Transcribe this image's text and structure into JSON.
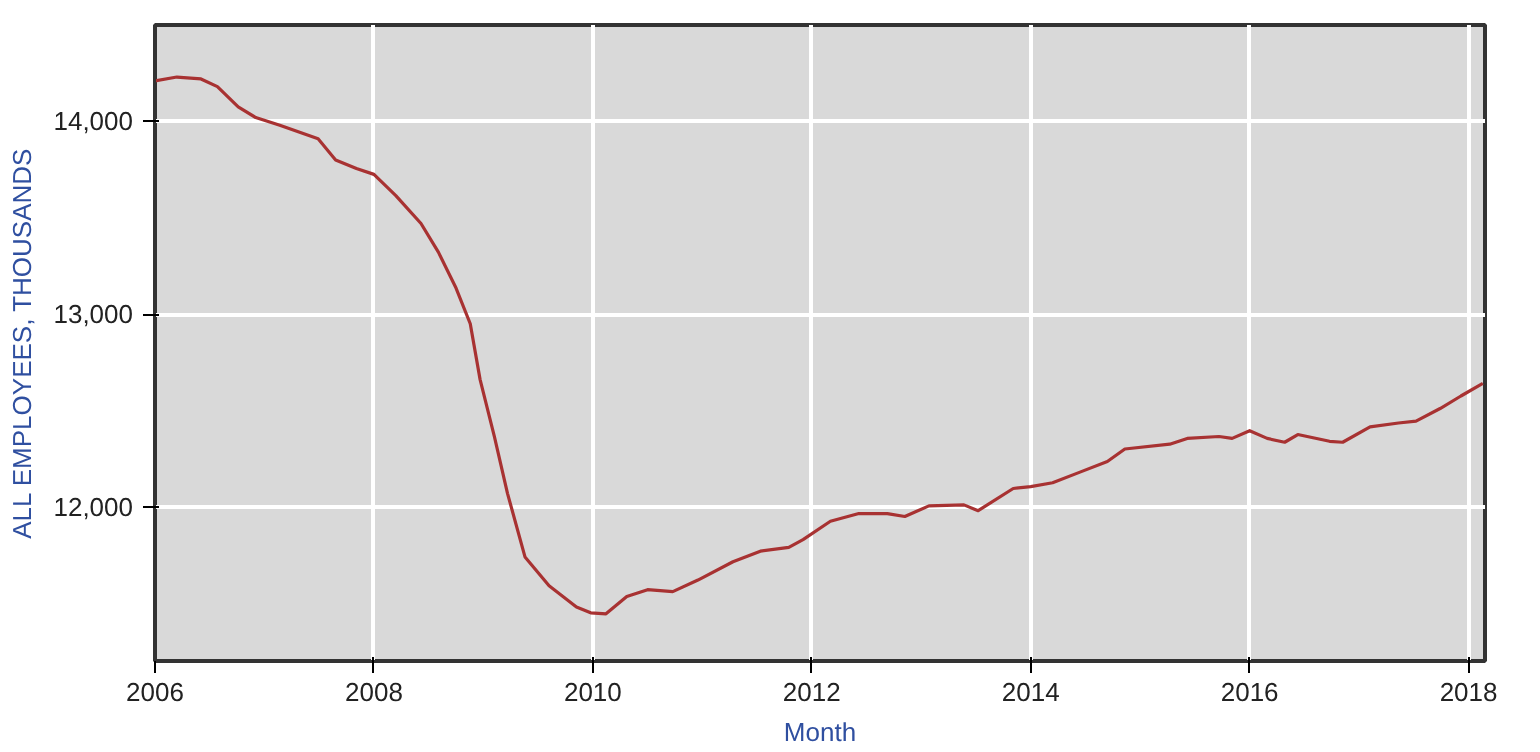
{
  "chart_data": {
    "type": "line",
    "xlabel": "Month",
    "ylabel": "ALL EMPLOYEES, THOUSANDS",
    "x": [
      2006.0,
      2006.2,
      2006.42,
      2006.57,
      2006.76,
      2006.92,
      2007.14,
      2007.49,
      2007.65,
      2007.84,
      2008.0,
      2008.2,
      2008.43,
      2008.59,
      2008.75,
      2008.88,
      2008.97,
      2009.1,
      2009.22,
      2009.38,
      2009.6,
      2009.85,
      2009.98,
      2010.12,
      2010.31,
      2010.5,
      2010.73,
      2010.96,
      2011.28,
      2011.53,
      2011.79,
      2011.92,
      2012.17,
      2012.43,
      2012.69,
      2012.85,
      2013.07,
      2013.39,
      2013.52,
      2013.84,
      2014.0,
      2014.2,
      2014.45,
      2014.7,
      2014.86,
      2015.27,
      2015.43,
      2015.72,
      2015.84,
      2016.0,
      2016.16,
      2016.32,
      2016.44,
      2016.73,
      2016.85,
      2017.1,
      2017.36,
      2017.52,
      2017.74,
      2017.93,
      2018.13
    ],
    "series": [
      {
        "color": "#a83232",
        "values": [
          14210,
          14230,
          14220,
          14180,
          14075,
          14020,
          13980,
          13910,
          13800,
          13755,
          13725,
          13615,
          13470,
          13320,
          13135,
          12950,
          12660,
          12365,
          12070,
          11740,
          11590,
          11480,
          11450,
          11445,
          11535,
          11570,
          11560,
          11620,
          11715,
          11770,
          11790,
          11830,
          11925,
          11965,
          11965,
          11950,
          12005,
          12010,
          11980,
          12095,
          12105,
          12125,
          12180,
          12235,
          12300,
          12325,
          12355,
          12365,
          12355,
          12395,
          12355,
          12335,
          12375,
          12340,
          12335,
          12415,
          12435,
          12445,
          12510,
          12575,
          12640
        ]
      }
    ],
    "xlim": [
      2006,
      2018.15
    ],
    "ylim": [
      11200,
      14500
    ],
    "xticks": [
      2006,
      2008,
      2010,
      2012,
      2014,
      2016,
      2018
    ],
    "yticks": [
      {
        "value": 12000,
        "label": "12,000"
      },
      {
        "value": 13000,
        "label": "13,000"
      },
      {
        "value": 14000,
        "label": "14,000"
      }
    ],
    "grid": true,
    "marker": "none",
    "line_style": "solid"
  }
}
